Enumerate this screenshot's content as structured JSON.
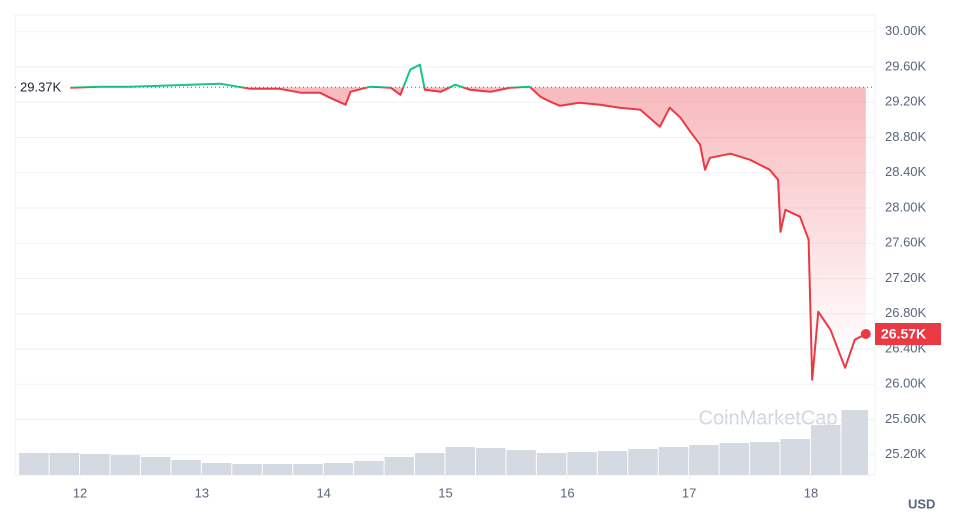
{
  "chart_data": {
    "type": "line",
    "x": [
      11.92,
      12.16,
      12.41,
      12.66,
      12.9,
      13.15,
      13.4,
      13.64,
      13.81,
      13.97,
      14.05,
      14.18,
      14.22,
      14.38,
      14.55,
      14.63,
      14.71,
      14.79,
      14.83,
      14.96,
      15.08,
      15.2,
      15.37,
      15.53,
      15.69,
      15.78,
      15.86,
      15.94,
      16.1,
      16.27,
      16.43,
      16.6,
      16.76,
      16.84,
      16.93,
      17.01,
      17.09,
      17.13,
      17.17,
      17.34,
      17.5,
      17.66,
      17.73,
      17.75,
      17.79,
      17.91,
      17.98,
      18.01,
      18.06,
      18.16,
      18.28,
      18.36,
      18.45
    ],
    "values": [
      29365,
      29376,
      29376,
      29387,
      29399,
      29410,
      29353,
      29353,
      29308,
      29308,
      29251,
      29172,
      29319,
      29376,
      29365,
      29285,
      29569,
      29626,
      29342,
      29319,
      29399,
      29342,
      29319,
      29365,
      29376,
      29262,
      29206,
      29160,
      29194,
      29172,
      29138,
      29115,
      28922,
      29138,
      29024,
      28865,
      28718,
      28434,
      28570,
      28616,
      28547,
      28434,
      28320,
      27730,
      27980,
      27901,
      27640,
      26050,
      26822,
      26618,
      26187,
      26505,
      26570
    ],
    "up_color": "#16c784",
    "down_color": "#ea3943",
    "baseline": {
      "value": 29370,
      "label": "29.37K"
    },
    "last_label": "26.57K",
    "xlim": [
      11.466,
      18.468
    ],
    "xticks": [
      12,
      13,
      14,
      15,
      16,
      17,
      18
    ],
    "ylim": [
      24970,
      30190
    ],
    "yticks": [
      {
        "value": 25200,
        "label": "25.20K"
      },
      {
        "value": 25600,
        "label": "25.60K"
      },
      {
        "value": 26000,
        "label": "26.00K"
      },
      {
        "value": 26400,
        "label": "26.40K"
      },
      {
        "value": 26800,
        "label": "26.80K"
      },
      {
        "value": 27200,
        "label": "27.20K"
      },
      {
        "value": 27600,
        "label": "27.60K"
      },
      {
        "value": 28000,
        "label": "28.00K"
      },
      {
        "value": 28400,
        "label": "28.40K"
      },
      {
        "value": 28800,
        "label": "28.80K"
      },
      {
        "value": 29200,
        "label": "29.20K"
      },
      {
        "value": 29600,
        "label": "29.60K"
      },
      {
        "value": 30000,
        "label": "30.00K"
      }
    ],
    "grid": true,
    "x_label": "USD",
    "watermark": "CoinMarketCap",
    "volume": {
      "color": "#d5d9e2",
      "x": [
        11.5,
        11.75,
        12,
        12.25,
        12.5,
        12.75,
        13,
        13.25,
        13.5,
        13.75,
        14,
        14.25,
        14.5,
        14.75,
        15,
        15.25,
        15.5,
        15.75,
        16,
        16.25,
        16.5,
        16.75,
        17,
        17.25,
        17.5,
        17.75,
        18,
        18.25
      ],
      "values": [
        22,
        22,
        21,
        20,
        18,
        15,
        12,
        11,
        11,
        11,
        12,
        14,
        18,
        22,
        28,
        27,
        25,
        22,
        23,
        24,
        26,
        28,
        30,
        32,
        33,
        36,
        50,
        65
      ]
    }
  }
}
